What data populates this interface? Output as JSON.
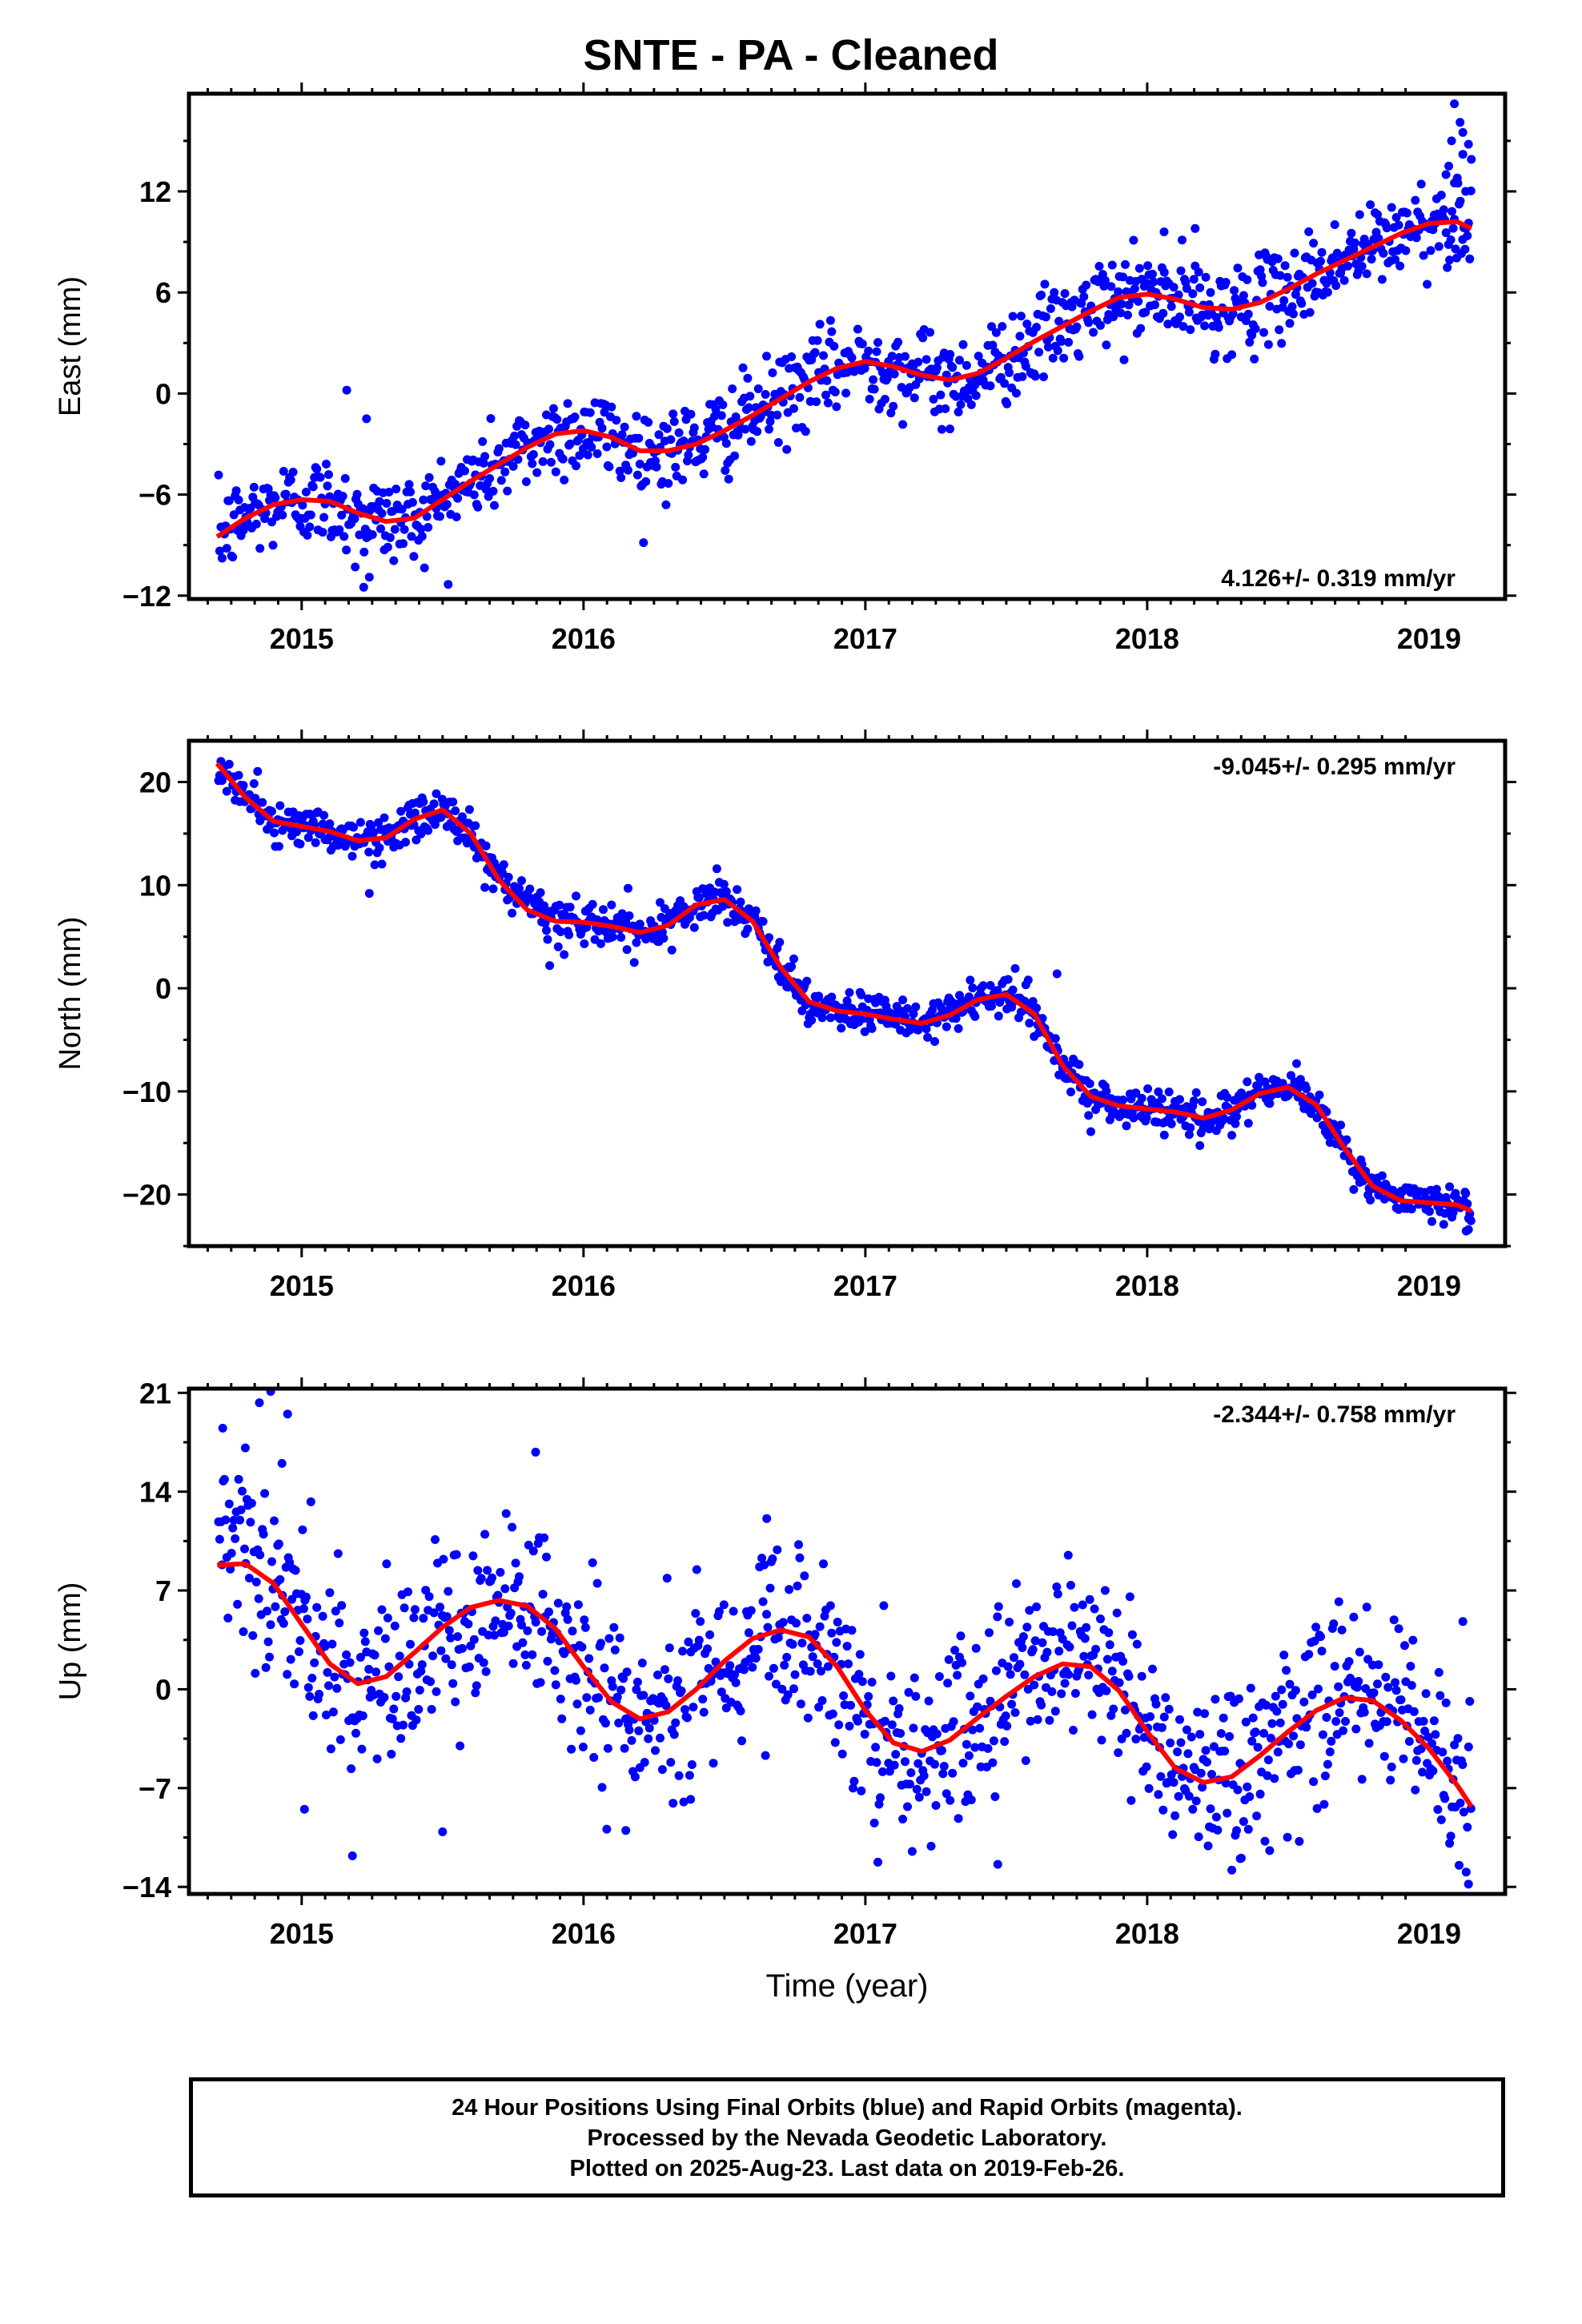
{
  "figure": {
    "title": "SNTE  - PA - Cleaned",
    "footer_lines": [
      "24 Hour Positions Using Final Orbits (blue) and Rapid Orbits (magenta).",
      "Processed by the Nevada Geodetic Laboratory.",
      "Plotted on 2025-Aug-23. Last data on 2019-Feb-26."
    ],
    "colors": {
      "points": "#0000ff",
      "fit": "#ff0000",
      "axes": "#000000"
    }
  },
  "chart_data": [
    {
      "type": "scatter",
      "panel": "east",
      "ylabel": "East (mm)",
      "xlabel": "",
      "xlim": [
        2014.6,
        2019.27
      ],
      "ylim": [
        -12.2,
        17.8
      ],
      "xticks": [
        2015,
        2016,
        2017,
        2018,
        2019
      ],
      "yticks": [
        -12,
        -6,
        0,
        6,
        12
      ],
      "rate_label": "4.126+/- 0.319 mm/yr",
      "rate_position": "bottom-right",
      "fit_curve": {
        "x": [
          2014.7,
          2014.8,
          2014.9,
          2015.0,
          2015.1,
          2015.2,
          2015.3,
          2015.4,
          2015.5,
          2015.6,
          2015.7,
          2015.8,
          2015.9,
          2016.0,
          2016.1,
          2016.2,
          2016.3,
          2016.4,
          2016.5,
          2016.6,
          2016.7,
          2016.8,
          2016.9,
          2017.0,
          2017.1,
          2017.2,
          2017.3,
          2017.4,
          2017.5,
          2017.6,
          2017.7,
          2017.8,
          2017.9,
          2018.0,
          2018.1,
          2018.2,
          2018.3,
          2018.4,
          2018.5,
          2018.6,
          2018.7,
          2018.8,
          2018.9,
          2019.0,
          2019.1,
          2019.15
        ],
        "y": [
          -8.5,
          -7.4,
          -6.6,
          -6.3,
          -6.4,
          -7.1,
          -7.6,
          -7.4,
          -6.3,
          -5.2,
          -4.2,
          -3.2,
          -2.4,
          -2.2,
          -2.6,
          -3.4,
          -3.4,
          -3.0,
          -2.2,
          -1.3,
          -0.3,
          0.7,
          1.5,
          1.9,
          1.6,
          1.1,
          0.8,
          1.2,
          2.1,
          3.1,
          4.0,
          4.9,
          5.7,
          5.9,
          5.6,
          5.1,
          5.0,
          5.4,
          6.2,
          7.1,
          7.9,
          8.7,
          9.5,
          10.1,
          10.2,
          9.8
        ]
      },
      "scatter_model": "fit_curve plus daily scatter, std 1.3 mm, approx. one point per 1.5 days",
      "outliers": [
        {
          "x": 2015.16,
          "y": 0.2
        },
        {
          "x": 2015.23,
          "y": -1.5
        },
        {
          "x": 2015.22,
          "y": -11.5
        },
        {
          "x": 2015.19,
          "y": -10.3
        },
        {
          "x": 2015.24,
          "y": -10.9
        },
        {
          "x": 2017.3,
          "y": -2.1
        },
        {
          "x": 2018.17,
          "y": 9.8
        },
        {
          "x": 2018.06,
          "y": 9.6
        },
        {
          "x": 2019.09,
          "y": 17.2
        },
        {
          "x": 2019.11,
          "y": 16.1
        },
        {
          "x": 2019.08,
          "y": 15.0
        },
        {
          "x": 2019.12,
          "y": 14.2
        },
        {
          "x": 2019.07,
          "y": 13.5
        },
        {
          "x": 2019.14,
          "y": 14.8
        },
        {
          "x": 2019.1,
          "y": 12.8
        },
        {
          "x": 2019.13,
          "y": 12.0
        },
        {
          "x": 2019.06,
          "y": 13.0
        },
        {
          "x": 2019.15,
          "y": 13.9
        },
        {
          "x": 2019.09,
          "y": 12.5
        },
        {
          "x": 2019.12,
          "y": 15.5
        }
      ]
    },
    {
      "type": "scatter",
      "panel": "north",
      "ylabel": "North (mm)",
      "xlabel": "",
      "xlim": [
        2014.6,
        2019.27
      ],
      "ylim": [
        -25,
        24
      ],
      "xticks": [
        2015,
        2016,
        2017,
        2018,
        2019
      ],
      "yticks": [
        -20,
        -10,
        0,
        10,
        20
      ],
      "rate_label": "-9.045+/- 0.295 mm/yr",
      "rate_position": "top-right",
      "fit_curve": {
        "x": [
          2014.7,
          2014.8,
          2014.9,
          2015.0,
          2015.1,
          2015.2,
          2015.3,
          2015.4,
          2015.5,
          2015.6,
          2015.7,
          2015.8,
          2015.9,
          2016.0,
          2016.1,
          2016.2,
          2016.3,
          2016.4,
          2016.5,
          2016.6,
          2016.7,
          2016.8,
          2016.9,
          2017.0,
          2017.1,
          2017.2,
          2017.3,
          2017.4,
          2017.5,
          2017.6,
          2017.7,
          2017.8,
          2017.9,
          2018.0,
          2018.1,
          2018.2,
          2018.3,
          2018.4,
          2018.5,
          2018.6,
          2018.7,
          2018.8,
          2018.9,
          2019.0,
          2019.1,
          2019.15
        ],
        "y": [
          21.8,
          18.5,
          16.2,
          15.7,
          15.2,
          14.3,
          14.6,
          16.4,
          17.3,
          15.0,
          10.5,
          7.6,
          6.5,
          6.4,
          6.0,
          5.4,
          6.1,
          8.1,
          8.6,
          6.5,
          2.0,
          -1.3,
          -2.2,
          -2.5,
          -3.0,
          -3.4,
          -2.6,
          -1.1,
          -0.6,
          -2.5,
          -7.5,
          -10.5,
          -11.4,
          -11.7,
          -12.0,
          -12.6,
          -11.8,
          -10.2,
          -9.6,
          -11.3,
          -15.5,
          -19.2,
          -20.6,
          -20.8,
          -21.0,
          -21.6
        ]
      },
      "scatter_model": "fit_curve plus daily scatter, std 1.0 mm, approx. one point per 1.5 days",
      "outliers": [
        {
          "x": 2015.24,
          "y": 9.2
        },
        {
          "x": 2015.88,
          "y": 2.2
        },
        {
          "x": 2016.18,
          "y": 2.5
        },
        {
          "x": 2017.68,
          "y": 1.4
        },
        {
          "x": 2017.8,
          "y": -13.9
        },
        {
          "x": 2018.53,
          "y": -7.3
        },
        {
          "x": 2019.14,
          "y": -23.4
        },
        {
          "x": 2019.13,
          "y": -19.9
        }
      ]
    },
    {
      "type": "scatter",
      "panel": "up",
      "ylabel": "Up (mm)",
      "xlabel": "Time (year)",
      "xlim": [
        2014.6,
        2019.27
      ],
      "ylim": [
        -14.5,
        21.3
      ],
      "xticks": [
        2015,
        2016,
        2017,
        2018,
        2019
      ],
      "yticks": [
        -14,
        -7,
        0,
        7,
        14,
        21
      ],
      "rate_label": "-2.344+/- 0.758 mm/yr",
      "rate_position": "top-right",
      "fit_curve": {
        "x": [
          2014.7,
          2014.8,
          2014.9,
          2015.0,
          2015.1,
          2015.2,
          2015.3,
          2015.4,
          2015.5,
          2015.6,
          2015.7,
          2015.8,
          2015.9,
          2016.0,
          2016.1,
          2016.2,
          2016.3,
          2016.4,
          2016.5,
          2016.6,
          2016.7,
          2016.8,
          2016.9,
          2017.0,
          2017.1,
          2017.2,
          2017.3,
          2017.4,
          2017.5,
          2017.6,
          2017.7,
          2017.8,
          2017.9,
          2018.0,
          2018.1,
          2018.2,
          2018.3,
          2018.4,
          2018.5,
          2018.6,
          2018.7,
          2018.8,
          2018.9,
          2019.0,
          2019.1,
          2019.15
        ],
        "y": [
          8.8,
          8.9,
          7.5,
          4.6,
          1.8,
          0.4,
          0.9,
          2.6,
          4.4,
          5.8,
          6.3,
          5.9,
          4.3,
          1.6,
          -0.9,
          -2.1,
          -1.6,
          0.0,
          2.0,
          3.6,
          4.2,
          3.7,
          1.6,
          -1.5,
          -3.8,
          -4.4,
          -3.6,
          -2.0,
          -0.5,
          0.9,
          1.8,
          1.6,
          -0.1,
          -3.0,
          -5.6,
          -6.6,
          -6.2,
          -4.7,
          -3.0,
          -1.5,
          -0.6,
          -0.8,
          -2.2,
          -4.2,
          -6.8,
          -8.3
        ]
      },
      "scatter_model": "fit_curve plus daily scatter, std 3.2 mm, approx. one point per 1.5 days",
      "outliers": [
        {
          "x": 2014.72,
          "y": 18.5
        },
        {
          "x": 2014.85,
          "y": 20.3
        },
        {
          "x": 2014.89,
          "y": 21.1
        },
        {
          "x": 2014.95,
          "y": 19.5
        },
        {
          "x": 2014.93,
          "y": 16.0
        },
        {
          "x": 2014.8,
          "y": 17.1
        },
        {
          "x": 2015.01,
          "y": -8.5
        },
        {
          "x": 2015.18,
          "y": -11.8
        },
        {
          "x": 2015.5,
          "y": -10.1
        },
        {
          "x": 2015.83,
          "y": 16.8
        },
        {
          "x": 2016.15,
          "y": -10.0
        },
        {
          "x": 2016.38,
          "y": -7.8
        },
        {
          "x": 2016.65,
          "y": 12.1
        },
        {
          "x": 2017.47,
          "y": -12.4
        },
        {
          "x": 2017.72,
          "y": 9.5
        },
        {
          "x": 2018.33,
          "y": -12.0
        },
        {
          "x": 2018.68,
          "y": 6.2
        },
        {
          "x": 2019.14,
          "y": -13.8
        },
        {
          "x": 2019.12,
          "y": 4.8
        }
      ]
    }
  ]
}
